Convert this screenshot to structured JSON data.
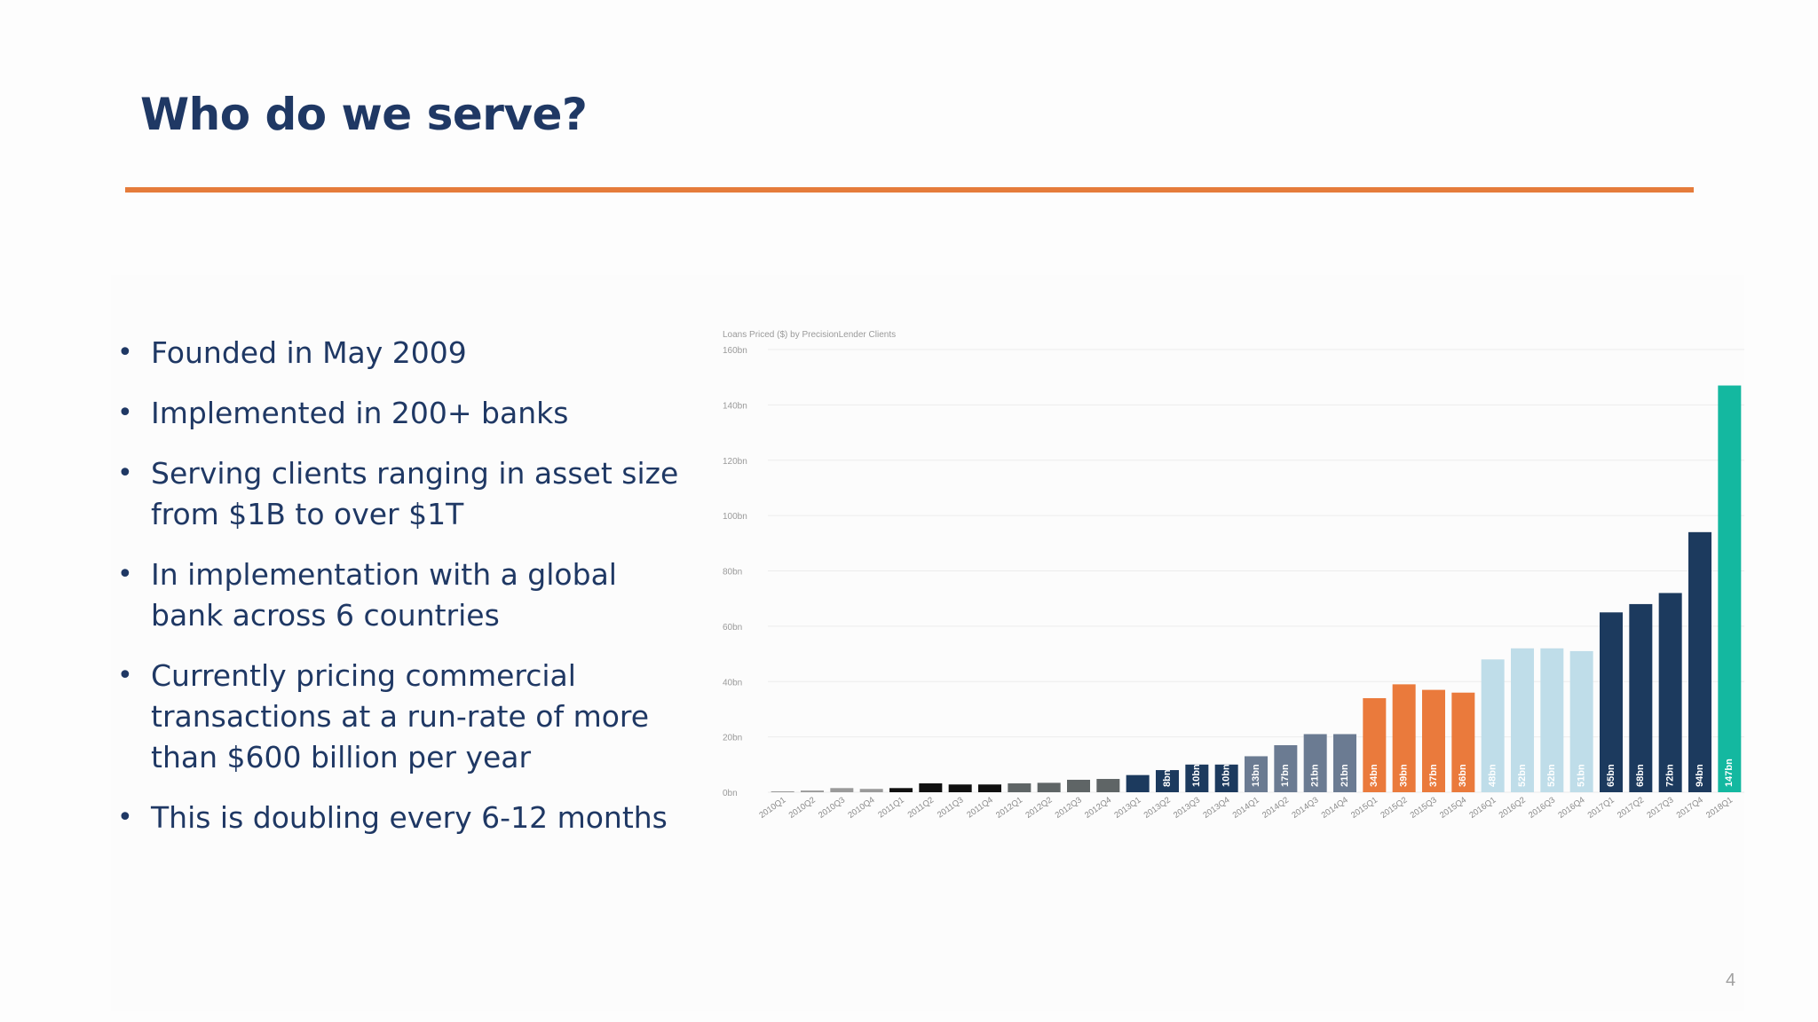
{
  "slide": {
    "title": "Who do we serve?",
    "page_number": "4",
    "accent_color": "#e57c3b",
    "title_color": "#1f3864"
  },
  "bullets": [
    "Founded in May 2009",
    "Implemented in 200+ banks",
    "Serving clients ranging in asset size from $1B to over $1T",
    "In implementation with a global bank across 6 countries",
    "Currently pricing commercial transactions at a run-rate of more than $600 billion per year",
    "This is doubling every 6-12 months"
  ],
  "chart_data": {
    "type": "bar",
    "title": "Loans Priced ($) by PrecisionLender Clients",
    "ylim": [
      0,
      160
    ],
    "yticks": [
      "0bn",
      "20bn",
      "40bn",
      "60bn",
      "80bn",
      "100bn",
      "120bn",
      "140bn",
      "160bn"
    ],
    "grid": true,
    "categories": [
      "2010Q1",
      "2010Q2",
      "2010Q3",
      "2010Q4",
      "2011Q1",
      "2011Q2",
      "2011Q3",
      "2011Q4",
      "2012Q1",
      "2012Q2",
      "2012Q3",
      "2012Q4",
      "2013Q1",
      "2013Q2",
      "2013Q3",
      "2013Q4",
      "2014Q1",
      "2014Q2",
      "2014Q3",
      "2014Q4",
      "2015Q1",
      "2015Q2",
      "2015Q3",
      "2015Q4",
      "2016Q1",
      "2016Q2",
      "2016Q3",
      "2016Q4",
      "2017Q1",
      "2017Q2",
      "2017Q3",
      "2017Q4",
      "2018Q1"
    ],
    "values": [
      0.3,
      0.6,
      1.5,
      1.2,
      1.5,
      3.2,
      2.8,
      2.8,
      3.2,
      3.4,
      4.5,
      4.8,
      6.2,
      8,
      10,
      10,
      13,
      17,
      21,
      21,
      34,
      39,
      37,
      36,
      48,
      52,
      52,
      51,
      65,
      68,
      72,
      94,
      147
    ],
    "labels": [
      "",
      "",
      "",
      "",
      "",
      "",
      "",
      "",
      "",
      "",
      "",
      "",
      "",
      "8bn",
      "10bn",
      "10bn",
      "13bn",
      "17bn",
      "21bn",
      "21bn",
      "34bn",
      "39bn",
      "37bn",
      "36bn",
      "48bn",
      "52bn",
      "52bn",
      "51bn",
      "65bn",
      "68bn",
      "72bn",
      "94bn",
      "147bn"
    ],
    "colors": [
      "#9a9a9a",
      "#9a9a9a",
      "#9a9a9a",
      "#9a9a9a",
      "#101010",
      "#101010",
      "#101010",
      "#101010",
      "#5f6566",
      "#5f6566",
      "#5f6566",
      "#5f6566",
      "#1c3a5e",
      "#1c3a5e",
      "#1c3a5e",
      "#1c3a5e",
      "#6b7b92",
      "#6b7b92",
      "#6b7b92",
      "#6b7b92",
      "#ea7a3c",
      "#ea7a3c",
      "#ea7a3c",
      "#ea7a3c",
      "#bfdde9",
      "#bfdde9",
      "#bfdde9",
      "#bfdde9",
      "#1c3a5e",
      "#1c3a5e",
      "#1c3a5e",
      "#1c3a5e",
      "#14b8a0"
    ]
  }
}
